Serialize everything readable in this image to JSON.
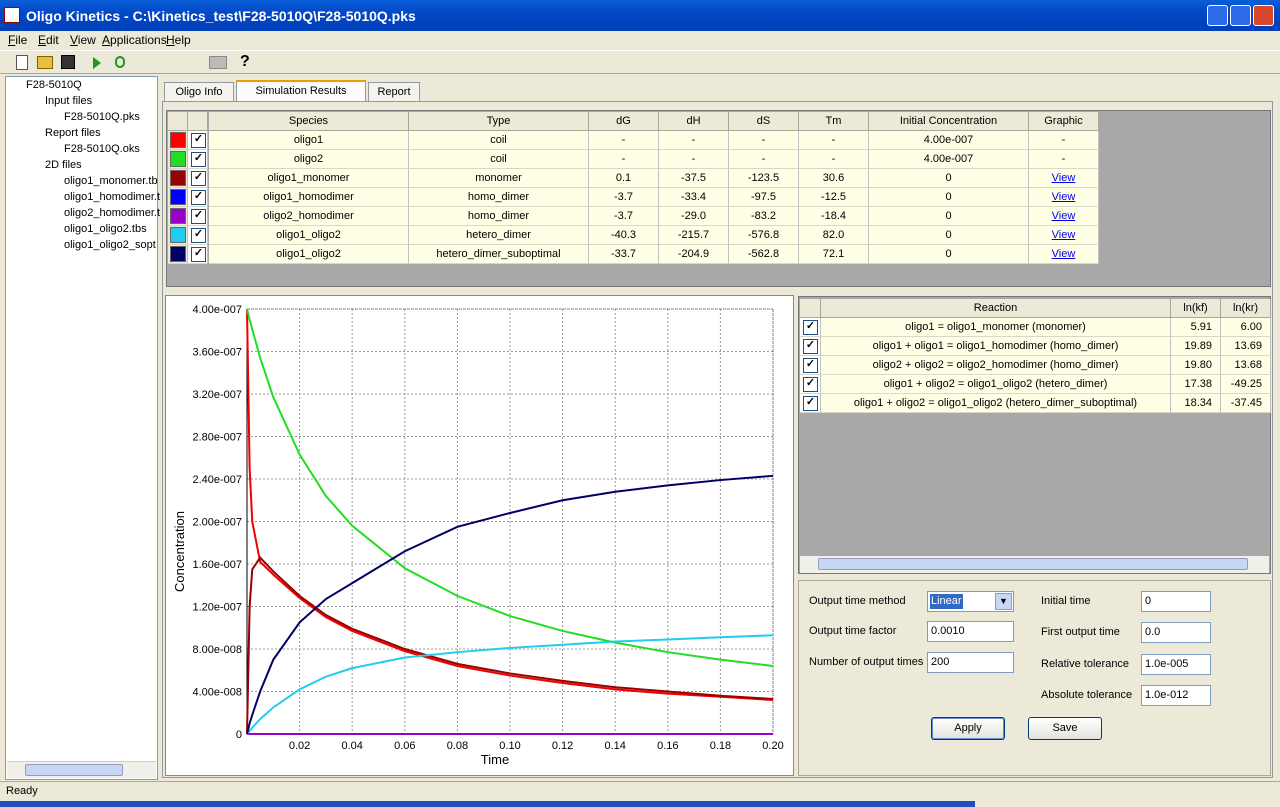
{
  "window": {
    "title": "Oligo Kinetics - C:\\Kinetics_test\\F28-5010Q\\F28-5010Q.pks"
  },
  "menu": [
    "File",
    "Edit",
    "View",
    "Applications",
    "Help"
  ],
  "tree": {
    "root": "F28-5010Q",
    "groups": [
      {
        "label": "Input files",
        "items": [
          "F28-5010Q.pks"
        ]
      },
      {
        "label": "Report files",
        "items": [
          "F28-5010Q.oks"
        ]
      },
      {
        "label": "2D files",
        "items": [
          "oligo1_monomer.tb",
          "oligo1_homodimer.t",
          "oligo2_homodimer.t",
          "oligo1_oligo2.tbs",
          "oligo1_oligo2_sopt"
        ]
      }
    ]
  },
  "tabs": [
    "Oligo Info",
    "Simulation Results",
    "Report"
  ],
  "species_table": {
    "columns": [
      "Species",
      "Type",
      "dG",
      "dH",
      "dS",
      "Tm",
      "Initial Concentration",
      "Graphic"
    ],
    "rows": [
      {
        "color": "#ff0000",
        "checked": true,
        "cells": [
          "oligo1",
          "coil",
          "-",
          "-",
          "-",
          "-",
          "4.00e-007",
          "-"
        ]
      },
      {
        "color": "#22dd22",
        "checked": true,
        "cells": [
          "oligo2",
          "coil",
          "-",
          "-",
          "-",
          "-",
          "4.00e-007",
          "-"
        ]
      },
      {
        "color": "#990000",
        "checked": true,
        "cells": [
          "oligo1_monomer",
          "monomer",
          "0.1",
          "-37.5",
          "-123.5",
          "30.6",
          "0",
          "View"
        ]
      },
      {
        "color": "#0000ff",
        "checked": true,
        "cells": [
          "oligo1_homodimer",
          "homo_dimer",
          "-3.7",
          "-33.4",
          "-97.5",
          "-12.5",
          "0",
          "View"
        ]
      },
      {
        "color": "#9900cc",
        "checked": true,
        "cells": [
          "oligo2_homodimer",
          "homo_dimer",
          "-3.7",
          "-29.0",
          "-83.2",
          "-18.4",
          "0",
          "View"
        ]
      },
      {
        "color": "#22ccee",
        "checked": true,
        "cells": [
          "oligo1_oligo2",
          "hetero_dimer",
          "-40.3",
          "-215.7",
          "-576.8",
          "82.0",
          "0",
          "View"
        ]
      },
      {
        "color": "#000066",
        "checked": true,
        "cells": [
          "oligo1_oligo2",
          "hetero_dimer_suboptimal",
          "-33.7",
          "-204.9",
          "-562.8",
          "72.1",
          "0",
          "View"
        ]
      }
    ]
  },
  "reactions_table": {
    "columns": [
      "Reaction",
      "ln(kf)",
      "ln(kr)"
    ],
    "rows": [
      {
        "checked": true,
        "cells": [
          "oligo1 = oligo1_monomer (monomer)",
          "5.91",
          "6.00"
        ]
      },
      {
        "checked": true,
        "cells": [
          "oligo1 + oligo1 = oligo1_homodimer (homo_dimer)",
          "19.89",
          "13.69"
        ]
      },
      {
        "checked": true,
        "cells": [
          "oligo2 + oligo2 = oligo2_homodimer (homo_dimer)",
          "19.80",
          "13.68"
        ]
      },
      {
        "checked": true,
        "cells": [
          "oligo1 + oligo2 = oligo1_oligo2 (hetero_dimer)",
          "17.38",
          "-49.25"
        ]
      },
      {
        "checked": true,
        "cells": [
          "oligo1 + oligo2 = oligo1_oligo2 (hetero_dimer_suboptimal)",
          "18.34",
          "-37.45"
        ]
      }
    ]
  },
  "settings": {
    "columns": [
      [
        {
          "label": "Output time method",
          "value": "Linear"
        },
        {
          "label": "Output time factor",
          "value": "0.0010"
        },
        {
          "label": "Number of output times",
          "value": "200"
        }
      ],
      [
        {
          "label": "Initial time",
          "value": "0"
        },
        {
          "label": "First output time",
          "value": "0.0"
        },
        {
          "label": "Relative tolerance",
          "value": "1.0e-005"
        },
        {
          "label": "Absolute tolerance",
          "value": "1.0e-012"
        }
      ]
    ],
    "buttons": [
      "Apply",
      "Save"
    ]
  },
  "status": "Ready",
  "chart_data": {
    "type": "line",
    "xlabel": "Time",
    "ylabel": "Concentration",
    "x": [
      0,
      0.001,
      0.002,
      0.005,
      0.01,
      0.02,
      0.03,
      0.04,
      0.06,
      0.08,
      0.1,
      0.12,
      0.14,
      0.16,
      0.18,
      0.2
    ],
    "series": [
      {
        "color": "#ee0000",
        "values": [
          4e-07,
          2.5e-07,
          2e-07,
          1.62e-07,
          1.5e-07,
          1.28e-07,
          1.1e-07,
          9.7e-08,
          7.8e-08,
          6.4e-08,
          5.5e-08,
          4.8e-08,
          4.2e-08,
          3.8e-08,
          3.5e-08,
          3.2e-08
        ]
      },
      {
        "color": "#22dd22",
        "values": [
          4e-07,
          3.9e-07,
          3.81e-07,
          3.54e-07,
          3.17e-07,
          2.63e-07,
          2.24e-07,
          1.96e-07,
          1.56e-07,
          1.3e-07,
          1.11e-07,
          9.7e-08,
          8.6e-08,
          7.7e-08,
          7e-08,
          6.4e-08
        ]
      },
      {
        "color": "#990000",
        "values": [
          0,
          1.2e-07,
          1.55e-07,
          1.66e-07,
          1.53e-07,
          1.3e-07,
          1.12e-07,
          9.9e-08,
          8e-08,
          6.6e-08,
          5.7e-08,
          5e-08,
          4.4e-08,
          4e-08,
          3.6e-08,
          3.3e-08
        ]
      },
      {
        "color": "#0000ff",
        "values": [
          0,
          0,
          0,
          0,
          0,
          0,
          0,
          0,
          0,
          0,
          0,
          0,
          0,
          0,
          0,
          0
        ]
      },
      {
        "color": "#9900cc",
        "values": [
          0,
          0,
          0,
          0,
          0,
          0,
          0,
          0,
          0,
          0,
          0,
          0,
          0,
          0,
          0,
          0
        ]
      },
      {
        "color": "#22ccee",
        "values": [
          0,
          3e-09,
          6e-09,
          1.4e-08,
          2.5e-08,
          4.2e-08,
          5.4e-08,
          6.2e-08,
          7.2e-08,
          7.7e-08,
          8.1e-08,
          8.4e-08,
          8.7e-08,
          8.9e-08,
          9.1e-08,
          9.3e-08
        ]
      },
      {
        "color": "#000066",
        "values": [
          0,
          1e-08,
          1.8e-08,
          4e-08,
          7e-08,
          1.05e-07,
          1.27e-07,
          1.42e-07,
          1.72e-07,
          1.95e-07,
          2.08e-07,
          2.2e-07,
          2.28e-07,
          2.34e-07,
          2.39e-07,
          2.43e-07
        ]
      }
    ],
    "xlim": [
      0,
      0.2
    ],
    "ylim": [
      0,
      4e-07
    ],
    "xticks": [
      0.02,
      0.04,
      0.06,
      0.08,
      {
        "value": 0.1,
        "label": "0.10"
      },
      0.12,
      0.14,
      0.16,
      0.18,
      {
        "value": 0.2,
        "label": "0.20"
      }
    ],
    "yticks": [
      0,
      {
        "value": 4e-08,
        "label": "4.00e-008"
      },
      {
        "value": 8e-08,
        "label": "8.00e-008"
      },
      {
        "value": 1.2e-07,
        "label": "1.20e-007"
      },
      {
        "value": 1.6e-07,
        "label": "1.60e-007"
      },
      {
        "value": 2e-07,
        "label": "2.00e-007"
      },
      {
        "value": 2.4e-07,
        "label": "2.40e-007"
      },
      {
        "value": 2.8e-07,
        "label": "2.80e-007"
      },
      {
        "value": 3.2e-07,
        "label": "3.20e-007"
      },
      {
        "value": 3.6e-07,
        "label": "3.60e-007"
      },
      {
        "value": 4e-07,
        "label": "4.00e-007"
      }
    ],
    "grid": true
  }
}
